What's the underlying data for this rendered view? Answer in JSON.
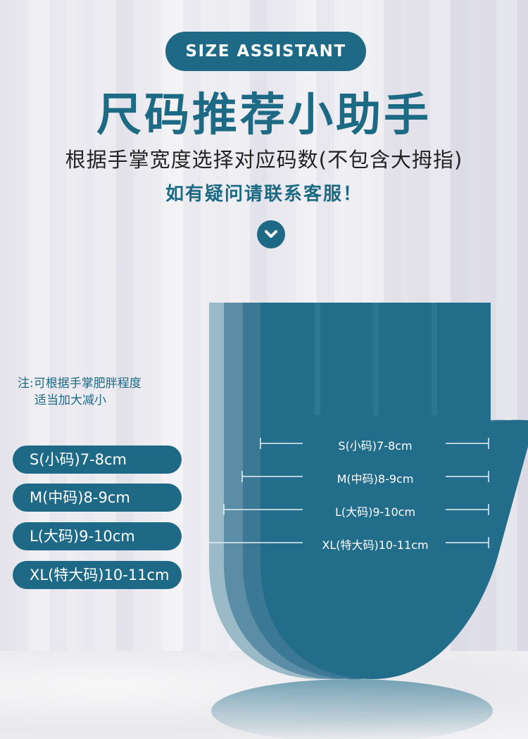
{
  "header": {
    "badge": "SIZE ASSISTANT",
    "title": "尺码推荐小助手",
    "subtitle": "根据手掌宽度选择对应码数(不包含大拇指)",
    "contact": "如有疑问请联系客服！",
    "scroll_icon": "chevron-down-icon"
  },
  "note": {
    "line1": "注:可根据手掌肥胖程度",
    "line2": "适当加大减小"
  },
  "sizes": [
    {
      "label": "S(小码)7-8cm"
    },
    {
      "label": "M(中码)8-9cm"
    },
    {
      "label": "L(大码)9-10cm"
    },
    {
      "label": "XL(特大码)10-11cm"
    }
  ],
  "colors": {
    "accent": "#1e6a86",
    "hand": "#216d8a"
  }
}
